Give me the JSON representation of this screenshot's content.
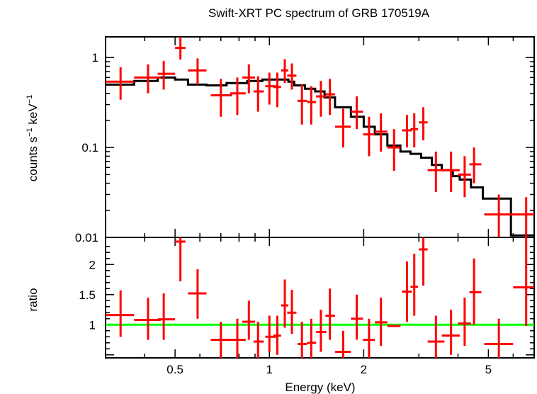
{
  "chart_data": [
    {
      "type": "scatter",
      "panel": "spectrum",
      "title": "Swift-XRT PC spectrum of GRB 170519A",
      "ylabel": "counts s⁻¹ keV⁻¹",
      "ylabel_parts": {
        "base": "counts s",
        "exp1": "−1",
        "mid": " keV",
        "exp2": "−1"
      },
      "xscale": "log",
      "yscale": "log",
      "xlim": [
        0.3,
        7.0
      ],
      "ylim": [
        0.01,
        1.7
      ],
      "yticks": [
        {
          "v": 0.01,
          "label": "0.01"
        },
        {
          "v": 0.1,
          "label": "0.1"
        },
        {
          "v": 1,
          "label": "1"
        }
      ],
      "data_series": {
        "name": "data",
        "color": "#ff0000",
        "points": [
          {
            "x": 0.335,
            "xlo": 0.3,
            "xhi": 0.37,
            "y": 0.54,
            "ylo": 0.34,
            "yhi": 0.78
          },
          {
            "x": 0.41,
            "xlo": 0.37,
            "xhi": 0.45,
            "y": 0.6,
            "ylo": 0.4,
            "yhi": 0.84
          },
          {
            "x": 0.46,
            "xlo": 0.44,
            "xhi": 0.5,
            "y": 0.66,
            "ylo": 0.44,
            "yhi": 0.92
          },
          {
            "x": 0.52,
            "xlo": 0.5,
            "xhi": 0.54,
            "y": 1.28,
            "ylo": 0.95,
            "yhi": 1.7
          },
          {
            "x": 0.59,
            "xlo": 0.55,
            "xhi": 0.63,
            "y": 0.72,
            "ylo": 0.5,
            "yhi": 0.98
          },
          {
            "x": 0.7,
            "xlo": 0.65,
            "xhi": 0.76,
            "y": 0.38,
            "ylo": 0.22,
            "yhi": 0.58
          },
          {
            "x": 0.79,
            "xlo": 0.75,
            "xhi": 0.84,
            "y": 0.4,
            "ylo": 0.23,
            "yhi": 0.6
          },
          {
            "x": 0.86,
            "xlo": 0.82,
            "xhi": 0.9,
            "y": 0.6,
            "ylo": 0.4,
            "yhi": 0.84
          },
          {
            "x": 0.92,
            "xlo": 0.89,
            "xhi": 0.96,
            "y": 0.42,
            "ylo": 0.25,
            "yhi": 0.62
          },
          {
            "x": 1.0,
            "xlo": 0.97,
            "xhi": 1.05,
            "y": 0.48,
            "ylo": 0.3,
            "yhi": 0.68
          },
          {
            "x": 1.06,
            "xlo": 1.03,
            "xhi": 1.09,
            "y": 0.47,
            "ylo": 0.28,
            "yhi": 0.68
          },
          {
            "x": 1.12,
            "xlo": 1.09,
            "xhi": 1.15,
            "y": 0.72,
            "ylo": 0.52,
            "yhi": 0.96
          },
          {
            "x": 1.18,
            "xlo": 1.14,
            "xhi": 1.22,
            "y": 0.63,
            "ylo": 0.44,
            "yhi": 0.86
          },
          {
            "x": 1.27,
            "xlo": 1.23,
            "xhi": 1.32,
            "y": 0.33,
            "ylo": 0.18,
            "yhi": 0.5
          },
          {
            "x": 1.36,
            "xlo": 1.32,
            "xhi": 1.41,
            "y": 0.32,
            "ylo": 0.18,
            "yhi": 0.48
          },
          {
            "x": 1.46,
            "xlo": 1.41,
            "xhi": 1.52,
            "y": 0.37,
            "ylo": 0.22,
            "yhi": 0.55
          },
          {
            "x": 1.56,
            "xlo": 1.51,
            "xhi": 1.62,
            "y": 0.39,
            "ylo": 0.23,
            "yhi": 0.58
          },
          {
            "x": 1.72,
            "xlo": 1.62,
            "xhi": 1.82,
            "y": 0.17,
            "ylo": 0.1,
            "yhi": 0.27
          },
          {
            "x": 1.9,
            "xlo": 1.82,
            "xhi": 1.99,
            "y": 0.25,
            "ylo": 0.16,
            "yhi": 0.37
          },
          {
            "x": 2.08,
            "xlo": 1.99,
            "xhi": 2.17,
            "y": 0.14,
            "ylo": 0.08,
            "yhi": 0.22
          },
          {
            "x": 2.27,
            "xlo": 2.17,
            "xhi": 2.38,
            "y": 0.15,
            "ylo": 0.09,
            "yhi": 0.24
          },
          {
            "x": 2.5,
            "xlo": 2.38,
            "xhi": 2.62,
            "y": 0.1,
            "ylo": 0.055,
            "yhi": 0.16
          },
          {
            "x": 2.75,
            "xlo": 2.65,
            "xhi": 2.85,
            "y": 0.155,
            "ylo": 0.1,
            "yhi": 0.23
          },
          {
            "x": 2.9,
            "xlo": 2.82,
            "xhi": 2.98,
            "y": 0.16,
            "ylo": 0.1,
            "yhi": 0.24
          },
          {
            "x": 3.1,
            "xlo": 3.0,
            "xhi": 3.2,
            "y": 0.19,
            "ylo": 0.12,
            "yhi": 0.28
          },
          {
            "x": 3.4,
            "xlo": 3.2,
            "xhi": 3.62,
            "y": 0.056,
            "ylo": 0.032,
            "yhi": 0.09
          },
          {
            "x": 3.8,
            "xlo": 3.55,
            "xhi": 4.05,
            "y": 0.056,
            "ylo": 0.032,
            "yhi": 0.09
          },
          {
            "x": 4.2,
            "xlo": 4.0,
            "xhi": 4.4,
            "y": 0.05,
            "ylo": 0.028,
            "yhi": 0.08
          },
          {
            "x": 4.5,
            "xlo": 4.35,
            "xhi": 4.75,
            "y": 0.065,
            "ylo": 0.04,
            "yhi": 0.1
          },
          {
            "x": 5.4,
            "xlo": 4.85,
            "xhi": 6.0,
            "y": 0.018,
            "ylo": 0.01,
            "yhi": 0.03
          },
          {
            "x": 6.6,
            "xlo": 6.0,
            "xhi": 7.0,
            "y": 0.018,
            "ylo": 0.01,
            "yhi": 0.028
          }
        ]
      },
      "model_series": {
        "name": "model",
        "color": "#000000",
        "steps": [
          [
            0.3,
            0.5
          ],
          [
            0.37,
            0.55
          ],
          [
            0.44,
            0.6
          ],
          [
            0.5,
            0.57
          ],
          [
            0.55,
            0.5
          ],
          [
            0.63,
            0.49
          ],
          [
            0.73,
            0.52
          ],
          [
            0.85,
            0.55
          ],
          [
            0.95,
            0.57
          ],
          [
            1.05,
            0.57
          ],
          [
            1.15,
            0.54
          ],
          [
            1.2,
            0.49
          ],
          [
            1.3,
            0.45
          ],
          [
            1.4,
            0.42
          ],
          [
            1.5,
            0.36
          ],
          [
            1.62,
            0.28
          ],
          [
            1.82,
            0.22
          ],
          [
            2.0,
            0.17
          ],
          [
            2.17,
            0.14
          ],
          [
            2.38,
            0.105
          ],
          [
            2.62,
            0.09
          ],
          [
            2.82,
            0.085
          ],
          [
            3.05,
            0.077
          ],
          [
            3.3,
            0.064
          ],
          [
            3.55,
            0.056
          ],
          [
            3.85,
            0.048
          ],
          [
            4.05,
            0.044
          ],
          [
            4.4,
            0.036
          ],
          [
            4.8,
            0.027
          ],
          [
            5.9,
            0.0105
          ],
          [
            7.0,
            0.0105
          ]
        ]
      }
    },
    {
      "type": "scatter",
      "panel": "ratio",
      "ylabel": "ratio",
      "xlabel": "Energy (keV)",
      "xscale": "log",
      "xlim": [
        0.3,
        7.0
      ],
      "ylim": [
        0.45,
        2.45
      ],
      "xticks": [
        {
          "v": 0.5,
          "label": "0.5"
        },
        {
          "v": 1,
          "label": "1"
        },
        {
          "v": 2,
          "label": "2"
        },
        {
          "v": 5,
          "label": "5"
        }
      ],
      "yticks": [
        {
          "v": 1,
          "label": "1"
        },
        {
          "v": 1.5,
          "label": "1.5"
        },
        {
          "v": 2,
          "label": "2"
        }
      ],
      "reference_line": {
        "y": 1.0,
        "color": "#00ff00"
      },
      "data_series": {
        "name": "ratio",
        "color": "#ff0000",
        "points": [
          {
            "x": 0.335,
            "xlo": 0.3,
            "xhi": 0.37,
            "y": 1.16,
            "ylo": 0.8,
            "yhi": 1.57
          },
          {
            "x": 0.41,
            "xlo": 0.37,
            "xhi": 0.45,
            "y": 1.08,
            "ylo": 0.75,
            "yhi": 1.45
          },
          {
            "x": 0.46,
            "xlo": 0.44,
            "xhi": 0.5,
            "y": 1.09,
            "ylo": 0.75,
            "yhi": 1.52
          },
          {
            "x": 0.52,
            "xlo": 0.5,
            "xhi": 0.54,
            "y": 2.38,
            "ylo": 1.72,
            "yhi": 2.45
          },
          {
            "x": 0.59,
            "xlo": 0.55,
            "xhi": 0.63,
            "y": 1.52,
            "ylo": 1.1,
            "yhi": 1.92
          },
          {
            "x": 0.7,
            "xlo": 0.65,
            "xhi": 0.76,
            "y": 0.75,
            "ylo": 0.45,
            "yhi": 1.05
          },
          {
            "x": 0.79,
            "xlo": 0.75,
            "xhi": 0.84,
            "y": 0.75,
            "ylo": 0.45,
            "yhi": 1.1
          },
          {
            "x": 0.86,
            "xlo": 0.82,
            "xhi": 0.9,
            "y": 1.05,
            "ylo": 0.75,
            "yhi": 1.4
          },
          {
            "x": 0.92,
            "xlo": 0.89,
            "xhi": 0.96,
            "y": 0.72,
            "ylo": 0.45,
            "yhi": 1.05
          },
          {
            "x": 1.0,
            "xlo": 0.97,
            "xhi": 1.05,
            "y": 0.8,
            "ylo": 0.55,
            "yhi": 1.15
          },
          {
            "x": 1.06,
            "xlo": 1.03,
            "xhi": 1.09,
            "y": 0.82,
            "ylo": 0.5,
            "yhi": 1.15
          },
          {
            "x": 1.12,
            "xlo": 1.09,
            "xhi": 1.15,
            "y": 1.32,
            "ylo": 0.95,
            "yhi": 1.75
          },
          {
            "x": 1.18,
            "xlo": 1.14,
            "xhi": 1.22,
            "y": 1.2,
            "ylo": 0.85,
            "yhi": 1.58
          },
          {
            "x": 1.27,
            "xlo": 1.23,
            "xhi": 1.32,
            "y": 0.68,
            "ylo": 0.45,
            "yhi": 1.05
          },
          {
            "x": 1.36,
            "xlo": 1.32,
            "xhi": 1.41,
            "y": 0.7,
            "ylo": 0.45,
            "yhi": 1.1
          },
          {
            "x": 1.46,
            "xlo": 1.41,
            "xhi": 1.52,
            "y": 0.88,
            "ylo": 0.55,
            "yhi": 1.25
          },
          {
            "x": 1.56,
            "xlo": 1.51,
            "xhi": 1.62,
            "y": 1.15,
            "ylo": 0.75,
            "yhi": 1.6
          },
          {
            "x": 1.72,
            "xlo": 1.62,
            "xhi": 1.82,
            "y": 0.55,
            "ylo": 0.45,
            "yhi": 0.9
          },
          {
            "x": 1.9,
            "xlo": 1.82,
            "xhi": 1.99,
            "y": 1.1,
            "ylo": 0.75,
            "yhi": 1.5
          },
          {
            "x": 2.08,
            "xlo": 1.99,
            "xhi": 2.17,
            "y": 0.75,
            "ylo": 0.45,
            "yhi": 1.1
          },
          {
            "x": 2.27,
            "xlo": 2.17,
            "xhi": 2.38,
            "y": 1.04,
            "ylo": 0.65,
            "yhi": 1.45
          },
          {
            "x": 2.5,
            "xlo": 2.38,
            "xhi": 2.62,
            "y": 0.98,
            "ylo": 0.98,
            "yhi": 0.98
          },
          {
            "x": 2.75,
            "xlo": 2.65,
            "xhi": 2.85,
            "y": 1.55,
            "ylo": 1.05,
            "yhi": 2.05
          },
          {
            "x": 2.9,
            "xlo": 2.82,
            "xhi": 2.98,
            "y": 1.63,
            "ylo": 1.15,
            "yhi": 2.18
          },
          {
            "x": 3.1,
            "xlo": 3.0,
            "xhi": 3.2,
            "y": 2.25,
            "ylo": 1.65,
            "yhi": 2.45
          },
          {
            "x": 3.4,
            "xlo": 3.2,
            "xhi": 3.62,
            "y": 0.72,
            "ylo": 0.45,
            "yhi": 1.15
          },
          {
            "x": 3.8,
            "xlo": 3.55,
            "xhi": 4.05,
            "y": 0.82,
            "ylo": 0.5,
            "yhi": 1.25
          },
          {
            "x": 4.2,
            "xlo": 4.0,
            "xhi": 4.4,
            "y": 1.02,
            "ylo": 0.65,
            "yhi": 1.45
          },
          {
            "x": 4.5,
            "xlo": 4.35,
            "xhi": 4.75,
            "y": 1.54,
            "ylo": 1.0,
            "yhi": 2.1
          },
          {
            "x": 5.4,
            "xlo": 4.85,
            "xhi": 6.0,
            "y": 0.68,
            "ylo": 0.45,
            "yhi": 1.1
          },
          {
            "x": 6.6,
            "xlo": 6.0,
            "xhi": 7.0,
            "y": 1.62,
            "ylo": 0.98,
            "yhi": 2.45
          }
        ]
      }
    }
  ]
}
